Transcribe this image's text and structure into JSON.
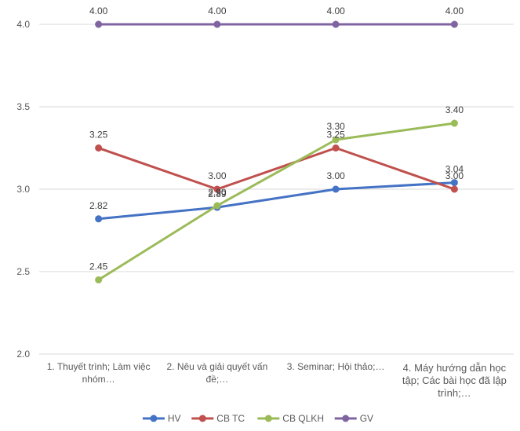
{
  "chart_data": {
    "type": "line",
    "title": "",
    "xlabel": "",
    "ylabel": "",
    "categories": [
      [
        "1. Thuyết trình; Làm việc",
        "nhóm…"
      ],
      [
        "2. Nêu và giải quyết vấn",
        "đề;…"
      ],
      [
        "3. Seminar; Hội thảo;…"
      ],
      [
        "4. Máy hướng dẫn học",
        "tập; Các bài học đã lập",
        "trình;…"
      ]
    ],
    "ylim": [
      2.0,
      4.0
    ],
    "yticks": [
      "2.0",
      "2.5",
      "3.0",
      "3.5",
      "4.0"
    ],
    "grid": true,
    "legend_position": "bottom",
    "series": [
      {
        "name": "HV",
        "values": [
          2.82,
          2.89,
          3.0,
          3.04
        ],
        "labels": [
          "2.82",
          "2.89",
          "3.00",
          "3.04"
        ],
        "color": "#4472C4"
      },
      {
        "name": "CB TC",
        "values": [
          3.25,
          3.0,
          3.25,
          3.0
        ],
        "labels": [
          "3.25",
          "3.00",
          "3.25",
          "3.00"
        ],
        "color": "#C0504D"
      },
      {
        "name": "CB QLKH",
        "values": [
          2.45,
          2.9,
          3.3,
          3.4
        ],
        "labels": [
          "2.45",
          "2.90",
          "3.30",
          "3.40"
        ],
        "color": "#9BBB59"
      },
      {
        "name": "GV",
        "values": [
          4.0,
          4.0,
          4.0,
          4.0
        ],
        "labels": [
          "4.00",
          "4.00",
          "4.00",
          "4.00"
        ],
        "color": "#8064A2"
      }
    ]
  }
}
